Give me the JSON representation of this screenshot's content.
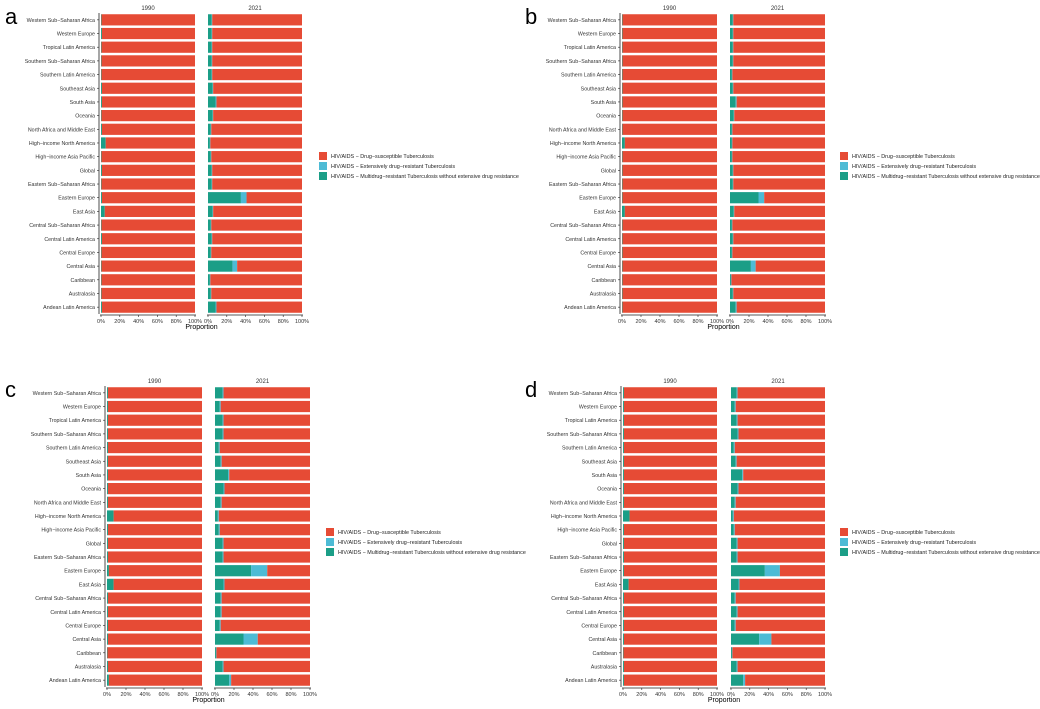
{
  "figure": {
    "regions": [
      "Western Sub−Saharan Africa",
      "Western Europe",
      "Tropical Latin America",
      "Southern Sub−Saharan Africa",
      "Southern Latin America",
      "Southeast Asia",
      "South Asia",
      "Oceania",
      "North Africa and Middle East",
      "High−income North America",
      "High−income Asia Pacific",
      "Global",
      "Eastern Sub−Saharan Africa",
      "Eastern Europe",
      "East Asia",
      "Central Sub−Saharan Africa",
      "Central Latin America",
      "Central Europe",
      "Central Asia",
      "Caribbean",
      "Australasia",
      "Andean Latin America"
    ],
    "facet_labels": [
      "1990",
      "2021"
    ],
    "xlabel": "Proportion",
    "xticks": [
      "0%",
      "20%",
      "40%",
      "60%",
      "80%",
      "100%"
    ],
    "legend": [
      {
        "label": "HIV/AIDS − Drug−susceptible Tuberculosis",
        "color": "#E64B35"
      },
      {
        "label": "HIV/AIDS − Extensively drug−resistant Tuberculosis",
        "color": "#4DBBD5"
      },
      {
        "label": "HIV/AIDS − Multidrug−resistant Tuberculosis without extensive drug resistance",
        "color": "#1B9E87"
      }
    ]
  },
  "chart_data": [
    {
      "type": "bar",
      "orientation": "horizontal",
      "stacked": "percent",
      "panel_label": "a",
      "categories": [
        "Western Sub−Saharan Africa",
        "Western Europe",
        "Tropical Latin America",
        "Southern Sub−Saharan Africa",
        "Southern Latin America",
        "Southeast Asia",
        "South Asia",
        "Oceania",
        "North Africa and Middle East",
        "High−income North America",
        "High−income Asia Pacific",
        "Global",
        "Eastern Sub−Saharan Africa",
        "Eastern Europe",
        "East Asia",
        "Central Sub−Saharan Africa",
        "Central Latin America",
        "Central Europe",
        "Central Asia",
        "Caribbean",
        "Australasia",
        "Andean Latin America"
      ],
      "facets": [
        {
          "label": "1990",
          "mdr": [
            0.5,
            1,
            0.5,
            0.5,
            0.5,
            1,
            1,
            0.5,
            1,
            5,
            0.5,
            1,
            0.5,
            1,
            4,
            0.5,
            1,
            0.5,
            0.5,
            0.5,
            0.5,
            1
          ],
          "xdr": [
            0,
            0,
            0,
            0,
            0,
            0,
            0,
            0,
            0,
            0,
            0,
            0,
            0,
            0,
            0,
            0,
            0,
            0,
            0,
            0,
            0,
            0
          ]
        },
        {
          "label": "2021",
          "mdr": [
            4,
            4,
            4,
            4,
            4,
            5,
            8,
            5,
            3,
            2,
            3,
            4,
            4,
            35,
            5,
            3,
            4,
            3,
            26,
            2,
            3,
            8
          ],
          "xdr": [
            0.5,
            0.5,
            0.5,
            0.5,
            0.5,
            0.5,
            1,
            0.5,
            0.5,
            0.5,
            0.5,
            0.5,
            0.5,
            6,
            0.5,
            0.5,
            0.5,
            0.5,
            5,
            0.5,
            0.5,
            1
          ]
        }
      ],
      "xlabel": "Proportion",
      "xlim": [
        0,
        100
      ]
    },
    {
      "type": "bar",
      "orientation": "horizontal",
      "stacked": "percent",
      "panel_label": "b",
      "categories": [
        "Western Sub−Saharan Africa",
        "Western Europe",
        "Tropical Latin America",
        "Southern Sub−Saharan Africa",
        "Southern Latin America",
        "Southeast Asia",
        "South Asia",
        "Oceania",
        "North Africa and Middle East",
        "High−income North America",
        "High−income Asia Pacific",
        "Global",
        "Eastern Sub−Saharan Africa",
        "Eastern Europe",
        "East Asia",
        "Central Sub−Saharan Africa",
        "Central Latin America",
        "Central Europe",
        "Central Asia",
        "Caribbean",
        "Australasia",
        "Andean Latin America"
      ],
      "facets": [
        {
          "label": "1990",
          "mdr": [
            0.5,
            0.5,
            0.5,
            0.5,
            0.5,
            0.5,
            0.5,
            0.5,
            0.5,
            3,
            0.5,
            0.5,
            0.5,
            0.5,
            3,
            0.5,
            0.5,
            0.5,
            0.5,
            0.5,
            0.5,
            0.5
          ],
          "xdr": [
            0,
            0,
            0,
            0,
            0,
            0,
            0,
            0,
            0,
            0,
            0,
            0,
            0,
            0,
            0,
            0,
            0,
            0,
            0,
            0,
            0,
            0
          ]
        },
        {
          "label": "2021",
          "mdr": [
            3,
            3,
            3,
            3,
            2,
            3,
            6,
            4,
            2,
            2,
            2,
            3,
            3,
            30,
            4,
            2,
            3,
            2,
            22,
            1,
            3,
            6
          ],
          "xdr": [
            0.5,
            0.5,
            0.5,
            0.5,
            0.5,
            0.5,
            1,
            0.5,
            0.5,
            0.5,
            0.5,
            0.5,
            0.5,
            6,
            0.5,
            0.5,
            0.5,
            0.5,
            5,
            0.5,
            0.5,
            1
          ]
        }
      ],
      "xlabel": "Proportion",
      "xlim": [
        0,
        100
      ]
    },
    {
      "type": "bar",
      "orientation": "horizontal",
      "stacked": "percent",
      "panel_label": "c",
      "categories": [
        "Western Sub−Saharan Africa",
        "Western Europe",
        "Tropical Latin America",
        "Southern Sub−Saharan Africa",
        "Southern Latin America",
        "Southeast Asia",
        "South Asia",
        "Oceania",
        "North Africa and Middle East",
        "High−income North America",
        "High−income Asia Pacific",
        "Global",
        "Eastern Sub−Saharan Africa",
        "Eastern Europe",
        "East Asia",
        "Central Sub−Saharan Africa",
        "Central Latin America",
        "Central Europe",
        "Central Asia",
        "Caribbean",
        "Australasia",
        "Andean Latin America"
      ],
      "facets": [
        {
          "label": "1990",
          "mdr": [
            1,
            1,
            1,
            1,
            1,
            1,
            1,
            1,
            1,
            7,
            1,
            1,
            1,
            2,
            7,
            1,
            1,
            1,
            1,
            0.5,
            1,
            2
          ],
          "xdr": [
            0,
            0,
            0,
            0,
            0,
            0,
            0,
            0,
            0,
            0,
            0,
            0,
            0,
            0,
            0,
            0,
            0,
            0,
            0,
            0,
            0,
            0
          ]
        },
        {
          "label": "2021",
          "mdr": [
            8,
            5,
            8,
            8,
            4,
            6,
            14,
            9,
            6,
            3,
            4,
            8,
            8,
            38,
            9,
            6,
            6,
            5,
            30,
            1,
            8,
            15
          ],
          "xdr": [
            1,
            1,
            1,
            1,
            1,
            1,
            1,
            1,
            1,
            1,
            1,
            1,
            1,
            17,
            1,
            1,
            1,
            1,
            15,
            0.5,
            1,
            2
          ]
        }
      ],
      "xlabel": "Proportion",
      "xlim": [
        0,
        100
      ]
    },
    {
      "type": "bar",
      "orientation": "horizontal",
      "stacked": "percent",
      "panel_label": "d",
      "categories": [
        "Western Sub−Saharan Africa",
        "Western Europe",
        "Tropical Latin America",
        "Southern Sub−Saharan Africa",
        "Southern Latin America",
        "Southeast Asia",
        "South Asia",
        "Oceania",
        "North Africa and Middle East",
        "High−income North America",
        "High−income Asia Pacific",
        "Global",
        "Eastern Sub−Saharan Africa",
        "Eastern Europe",
        "East Asia",
        "Central Sub−Saharan Africa",
        "Central Latin America",
        "Central Europe",
        "Central Asia",
        "Caribbean",
        "Australasia",
        "Andean Latin America"
      ],
      "facets": [
        {
          "label": "1990",
          "mdr": [
            1,
            1,
            1,
            1,
            1,
            1,
            1,
            1,
            1,
            7,
            1,
            1,
            1,
            1,
            6,
            1,
            1,
            1,
            1,
            0.5,
            1,
            1
          ],
          "xdr": [
            0,
            0,
            0,
            0,
            0,
            0,
            0,
            0,
            0,
            0,
            0,
            0,
            0,
            0,
            0,
            0,
            0,
            0,
            0,
            0,
            0,
            0
          ]
        },
        {
          "label": "2021",
          "mdr": [
            6,
            4,
            6,
            7,
            3,
            5,
            12,
            7,
            4,
            2,
            3,
            6,
            6,
            36,
            8,
            4,
            6,
            4,
            30,
            1,
            6,
            13
          ],
          "xdr": [
            1,
            1,
            1,
            1,
            1,
            1,
            1,
            1,
            1,
            1,
            1,
            1,
            1,
            16,
            1,
            1,
            1,
            1,
            13,
            0.5,
            1,
            2
          ]
        }
      ],
      "xlabel": "Proportion",
      "xlim": [
        0,
        100
      ]
    }
  ]
}
